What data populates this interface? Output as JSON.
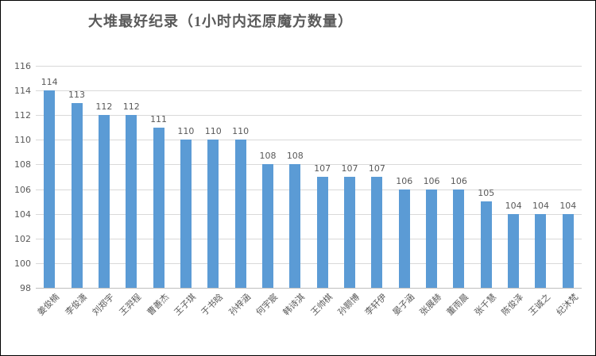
{
  "chart_data": {
    "type": "bar",
    "title": "大堆最好纪录（1小时内还原魔方数量）",
    "categories": [
      "姜俊楠",
      "李俊潇",
      "刘郑宇",
      "王羿程",
      "曹善杰",
      "王子琪",
      "于书晗",
      "孙梓涵",
      "何宇宸",
      "韩诗淇",
      "王帅棋",
      "孙颢博",
      "李轩伊",
      "晏子涵",
      "张展赫",
      "董雨晨",
      "张千慧",
      "陈俊泽",
      "王诚之",
      "纪沐梵"
    ],
    "values": [
      114,
      113,
      112,
      112,
      111,
      110,
      110,
      110,
      108,
      108,
      107,
      107,
      107,
      106,
      106,
      106,
      105,
      104,
      104,
      104
    ],
    "xlabel": "",
    "ylabel": "",
    "ylim": [
      98,
      116
    ],
    "yticks": [
      98,
      100,
      102,
      104,
      106,
      108,
      110,
      112,
      114,
      116
    ],
    "grid": true,
    "legend": "none",
    "data_labels": true,
    "colors": {
      "bar": "#5b9bd5",
      "gridline": "#d9d9d9",
      "axis": "#bfbfbf",
      "text": "#595959"
    }
  }
}
